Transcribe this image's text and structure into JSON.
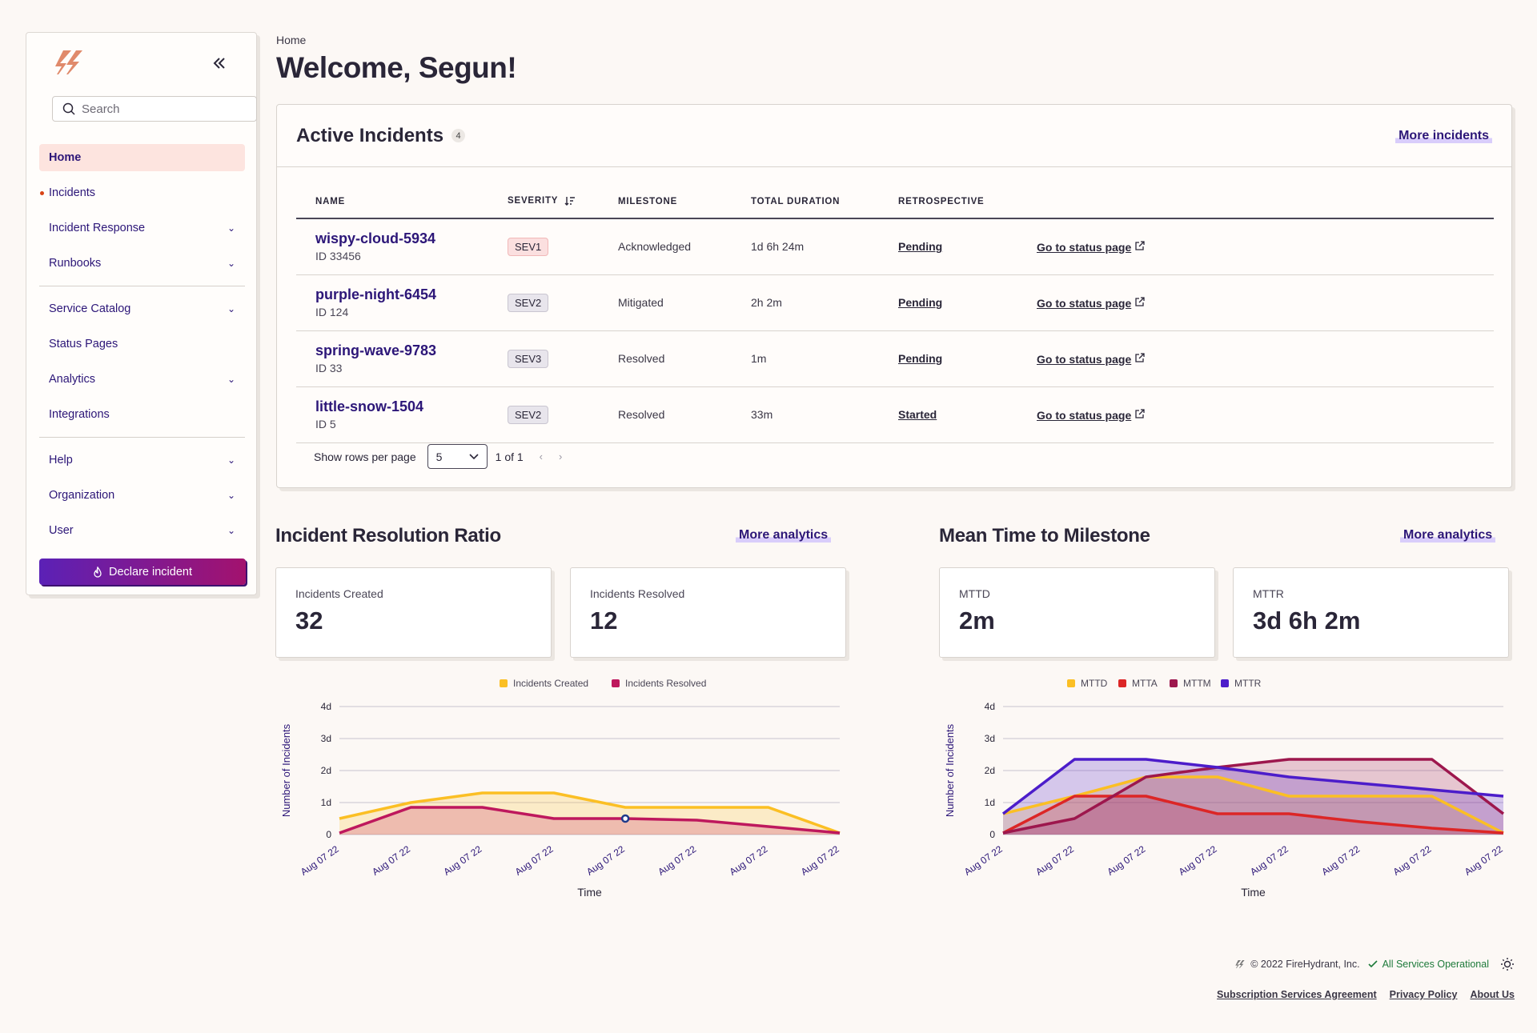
{
  "sidebar": {
    "search_placeholder": "Search",
    "items": [
      {
        "label": "Home"
      },
      {
        "label": "Incidents"
      },
      {
        "label": "Incident Response"
      },
      {
        "label": "Runbooks"
      },
      {
        "label": "Service Catalog"
      },
      {
        "label": "Status Pages"
      },
      {
        "label": "Analytics"
      },
      {
        "label": "Integrations"
      },
      {
        "label": "Help"
      },
      {
        "label": "Organization"
      },
      {
        "label": "User"
      }
    ],
    "declare_label": "Declare incident"
  },
  "breadcrumb": "Home",
  "page_title": "Welcome, Segun!",
  "incidents_card": {
    "title": "Active Incidents",
    "count": "4",
    "more_label": "More incidents",
    "columns": [
      "NAME",
      "SEVERITY",
      "MILESTONE",
      "TOTAL DURATION",
      "RETROSPECTIVE"
    ],
    "rows": [
      {
        "name": "wispy-cloud-5934",
        "id": "ID 33456",
        "severity": "SEV1",
        "milestone": "Acknowledged",
        "duration": "1d 6h 24m",
        "retro": "Pending",
        "status_link": "Go to status page"
      },
      {
        "name": "purple-night-6454",
        "id": "ID 124",
        "severity": "SEV2",
        "milestone": "Mitigated",
        "duration": "2h 2m",
        "retro": "Pending",
        "status_link": "Go to status page"
      },
      {
        "name": "spring-wave-9783",
        "id": "ID 33",
        "severity": "SEV3",
        "milestone": "Resolved",
        "duration": "1m",
        "retro": "Pending",
        "status_link": "Go to status page"
      },
      {
        "name": "little-snow-1504",
        "id": "ID 5",
        "severity": "SEV2",
        "milestone": "Resolved",
        "duration": "33m",
        "retro": "Started",
        "status_link": "Go to status page"
      }
    ],
    "rows_label": "Show rows per page",
    "rows_value": "5",
    "page_info": "1 of 1"
  },
  "resolution": {
    "title": "Incident Resolution Ratio",
    "more_label": "More analytics",
    "stats": [
      {
        "label": "Incidents Created",
        "value": "32"
      },
      {
        "label": "Incidents Resolved",
        "value": "12"
      }
    ]
  },
  "milestone": {
    "title": "Mean Time to Milestone",
    "more_label": "More analytics",
    "stats": [
      {
        "label": "MTTD",
        "value": "2m"
      },
      {
        "label": "MTTR",
        "value": "3d 6h 2m"
      }
    ]
  },
  "chart_data": [
    {
      "type": "area",
      "title": "Incident Resolution Ratio",
      "xlabel": "Time",
      "ylabel": "Number of Incidents",
      "yticks": [
        "0",
        "1d",
        "2d",
        "3d",
        "4d"
      ],
      "ylim": [
        0,
        4
      ],
      "x": [
        "Aug 07 22",
        "Aug 07 22",
        "Aug 07 22",
        "Aug 07 22",
        "Aug 07 22",
        "Aug 07 22",
        "Aug 07 22",
        "Aug 07 22"
      ],
      "series": [
        {
          "name": "Incidents Created",
          "color": "#fbbf24",
          "values": [
            0.5,
            1.0,
            1.3,
            1.3,
            0.85,
            0.85,
            0.85,
            0.05
          ]
        },
        {
          "name": "Incidents Resolved",
          "color": "#be185d",
          "values": [
            0.05,
            0.85,
            0.85,
            0.5,
            0.5,
            0.45,
            0.25,
            0.05
          ]
        }
      ]
    },
    {
      "type": "area",
      "title": "Mean Time to Milestone",
      "xlabel": "Time",
      "ylabel": "Number of Incidents",
      "yticks": [
        "0",
        "1d",
        "2d",
        "3d",
        "4d"
      ],
      "ylim": [
        0,
        4
      ],
      "x": [
        "Aug 07 22",
        "Aug 07 22",
        "Aug 07 22",
        "Aug 07 22",
        "Aug 07 22",
        "Aug 07 22",
        "Aug 07 22",
        "Aug 07 22"
      ],
      "series": [
        {
          "name": "MTTD",
          "color": "#fbbf24",
          "values": [
            0.65,
            1.2,
            1.8,
            1.8,
            1.2,
            1.2,
            1.2,
            0.05
          ]
        },
        {
          "name": "MTTA",
          "color": "#dc2626",
          "values": [
            0.05,
            1.2,
            1.2,
            0.65,
            0.65,
            0.4,
            0.2,
            0.05
          ]
        },
        {
          "name": "MTTM",
          "color": "#9d174d",
          "values": [
            0.05,
            0.5,
            1.8,
            2.1,
            2.35,
            2.35,
            2.35,
            0.65
          ]
        },
        {
          "name": "MTTR",
          "color": "#4c1dca",
          "values": [
            0.65,
            2.35,
            2.35,
            2.1,
            1.8,
            1.6,
            1.4,
            1.2
          ]
        }
      ]
    }
  ],
  "footer": {
    "copyright": "© 2022 FireHydrant, Inc.",
    "status": "All Services Operational",
    "links": [
      "Subscription Services Agreement",
      "Privacy Policy",
      "About Us"
    ]
  }
}
